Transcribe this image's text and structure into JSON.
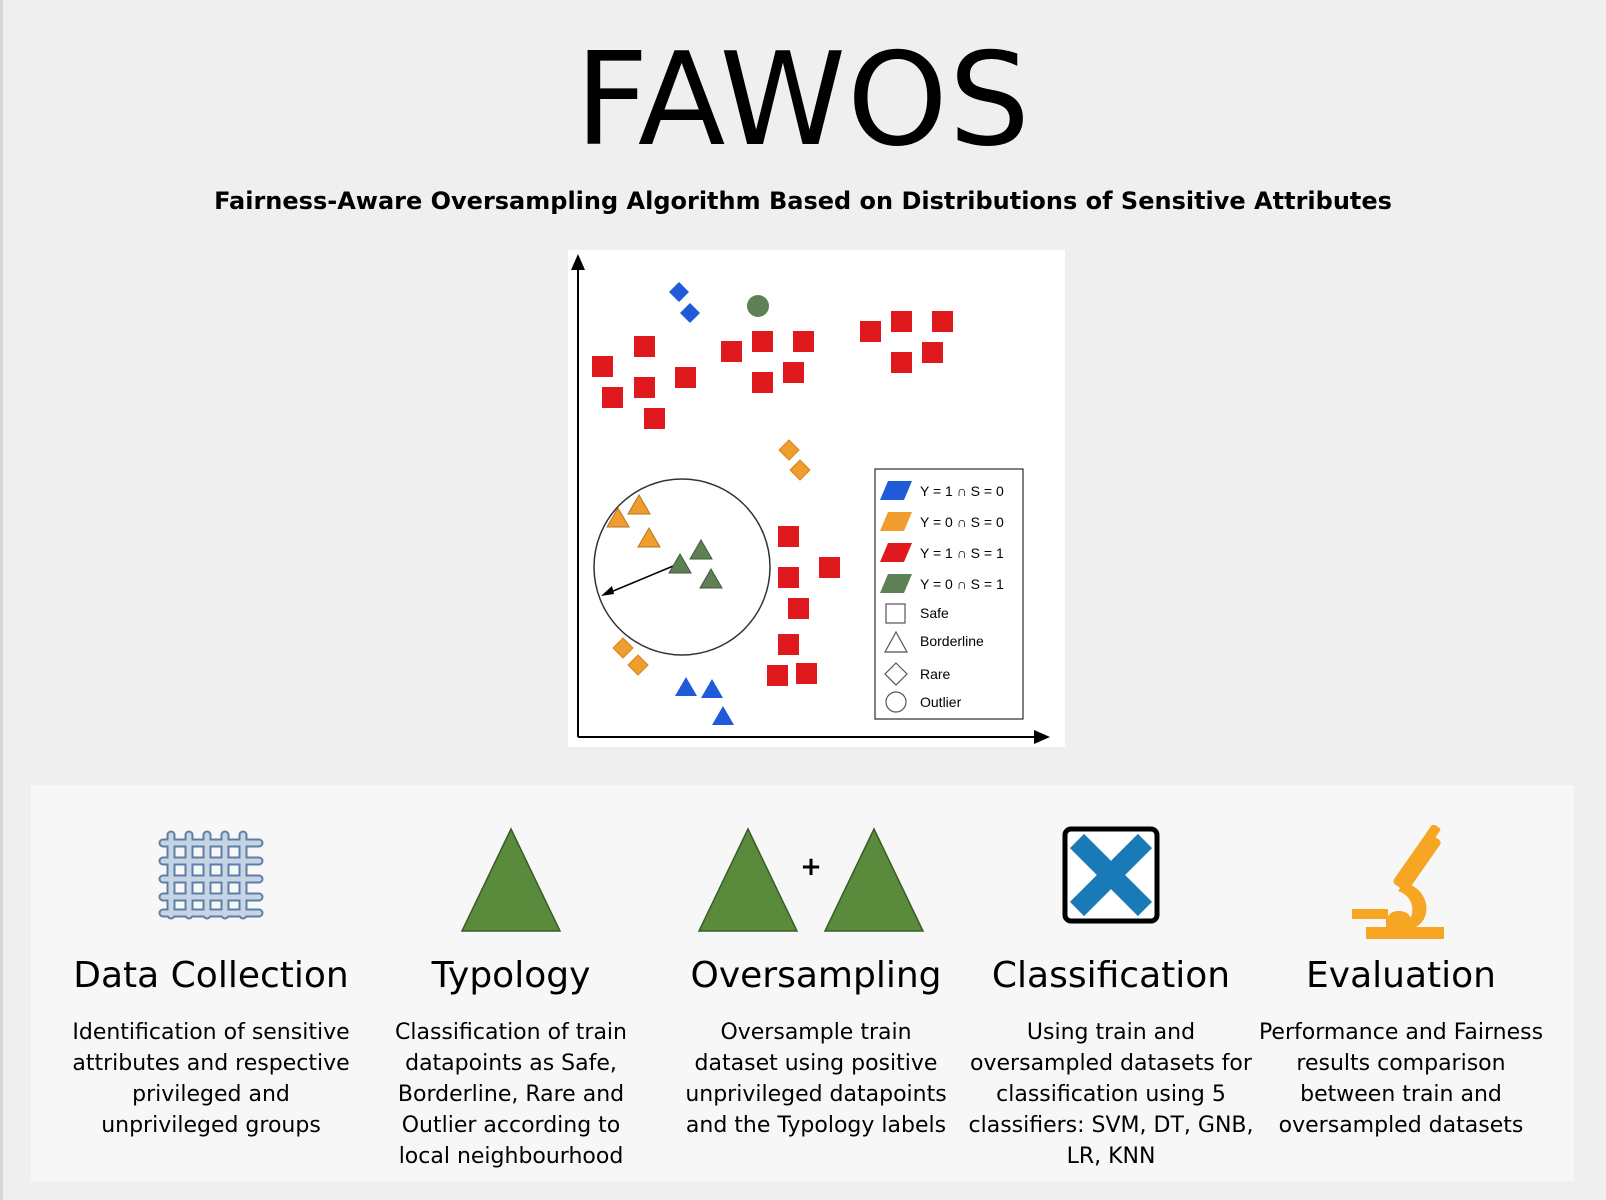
{
  "title": "FAWOS",
  "subtitle": "Fairness-Aware Oversampling Algorithm Based on Distributions of Sensitive Attributes",
  "figure": {
    "legend": [
      {
        "label": "Y = 1 ∩ S = 0",
        "color": "#1f5bd9",
        "shape": "parallelogram"
      },
      {
        "label": "Y = 0 ∩ S = 0",
        "color": "#ef9d2f",
        "shape": "parallelogram"
      },
      {
        "label": "Y = 1 ∩ S = 1",
        "color": "#e0191f",
        "shape": "parallelogram"
      },
      {
        "label": "Y = 0 ∩ S = 1",
        "color": "#5f7f55",
        "shape": "parallelogram"
      },
      {
        "label": "Safe",
        "shape": "square"
      },
      {
        "label": "Borderline",
        "shape": "triangle"
      },
      {
        "label": "Rare",
        "shape": "diamond"
      },
      {
        "label": "Outlier",
        "shape": "circle"
      }
    ]
  },
  "steps": [
    {
      "title": "Data Collection",
      "description": "Identification of sensitive attributes and respective privileged and unprivileged groups",
      "icon": "woven-grid-icon"
    },
    {
      "title": "Typology",
      "description": "Classification of train datapoints as Safe, Borderline, Rare and Outlier according to local neighbourhood",
      "icon": "triangle-icon"
    },
    {
      "title": "Oversampling",
      "description": "Oversample train dataset using positive unprivileged datapoints and the Typology labels",
      "icon": "triangle-plus-triangle-icon",
      "plus": "+"
    },
    {
      "title": "Classification",
      "description": "Using train and oversampled datasets for classification using 5 classifiers: SVM, DT, GNB, LR, KNN",
      "icon": "x-box-icon"
    },
    {
      "title": "Evaluation",
      "description": "Performance and Fairness results comparison between  train and oversampled datasets",
      "icon": "microscope-icon"
    }
  ]
}
